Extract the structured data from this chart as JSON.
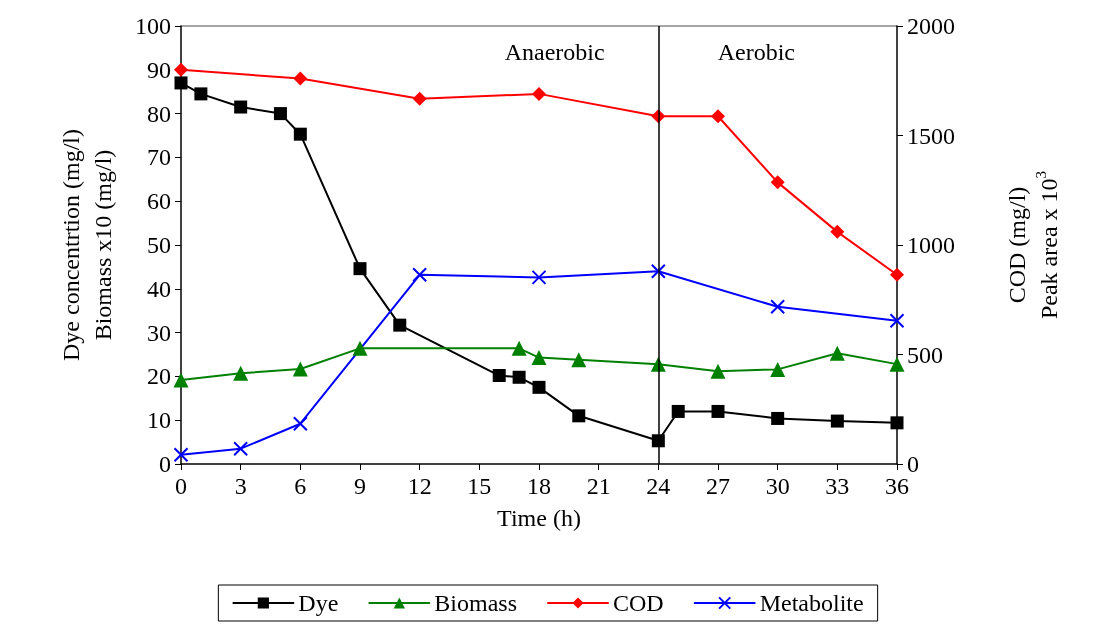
{
  "chart_data": {
    "type": "line",
    "xlabel": "Time (h)",
    "ylabel": "Dye concentrtion (mg/l)\nBiomass x10 (mg/l)",
    "y2label": "COD (mg/l)\nPeak area x 10$^{3}$",
    "xlim": [
      0,
      36
    ],
    "xticks": [
      0,
      3,
      6,
      9,
      12,
      15,
      18,
      21,
      24,
      27,
      30,
      33,
      36
    ],
    "ylim": [
      0,
      100
    ],
    "yticks": [
      0,
      10,
      20,
      30,
      40,
      50,
      60,
      70,
      80,
      90,
      100
    ],
    "y2lim": [
      0,
      2000
    ],
    "y2ticks": [
      0,
      500,
      1000,
      1500,
      2000
    ],
    "grid": false,
    "legend": "bottom",
    "line_style": "solid",
    "ref_lines": [
      {
        "axis": "x",
        "value": 24,
        "label": null,
        "color": "#000000"
      }
    ],
    "annotations": [
      "Anaerobic",
      "Aerobic"
    ],
    "series": [
      {
        "name": "Dye",
        "color": "#000000",
        "marker": "square",
        "x": [
          0,
          1,
          3,
          5,
          6,
          9,
          11,
          16,
          17,
          18,
          20,
          24,
          25,
          27,
          30,
          33,
          36
        ],
        "values": [
          87,
          84.5,
          81.5,
          80,
          75.3,
          44.6,
          31.7,
          20.2,
          19.8,
          17.5,
          11,
          5.3,
          12,
          12,
          10.4,
          9.8,
          9.4
        ]
      },
      {
        "name": "Biomass",
        "color": "#008000",
        "marker": "triangle",
        "x": [
          0,
          3,
          6,
          9,
          17,
          18,
          20,
          24,
          27,
          30,
          33,
          36
        ],
        "values": [
          19.2,
          20.7,
          21.7,
          26.4,
          26.4,
          24.3,
          23.8,
          22.8,
          21.2,
          21.6,
          25.3,
          22.8
        ]
      },
      {
        "name": "COD",
        "color": "#ff0000",
        "marker": "diamond",
        "axis": "y2",
        "x": [
          0,
          6,
          12,
          18,
          24,
          27,
          30,
          33,
          36
        ],
        "values": [
          1800,
          1760,
          1668,
          1690,
          1588,
          1588,
          1286,
          1060,
          864
        ]
      },
      {
        "name": "Metabolite",
        "color": "#0000ff",
        "marker": "cross",
        "axis": "y2",
        "x": [
          0,
          3,
          6,
          12,
          18,
          24,
          30,
          36
        ],
        "values": [
          42,
          70,
          184,
          864,
          852,
          880,
          718,
          654
        ]
      }
    ]
  }
}
